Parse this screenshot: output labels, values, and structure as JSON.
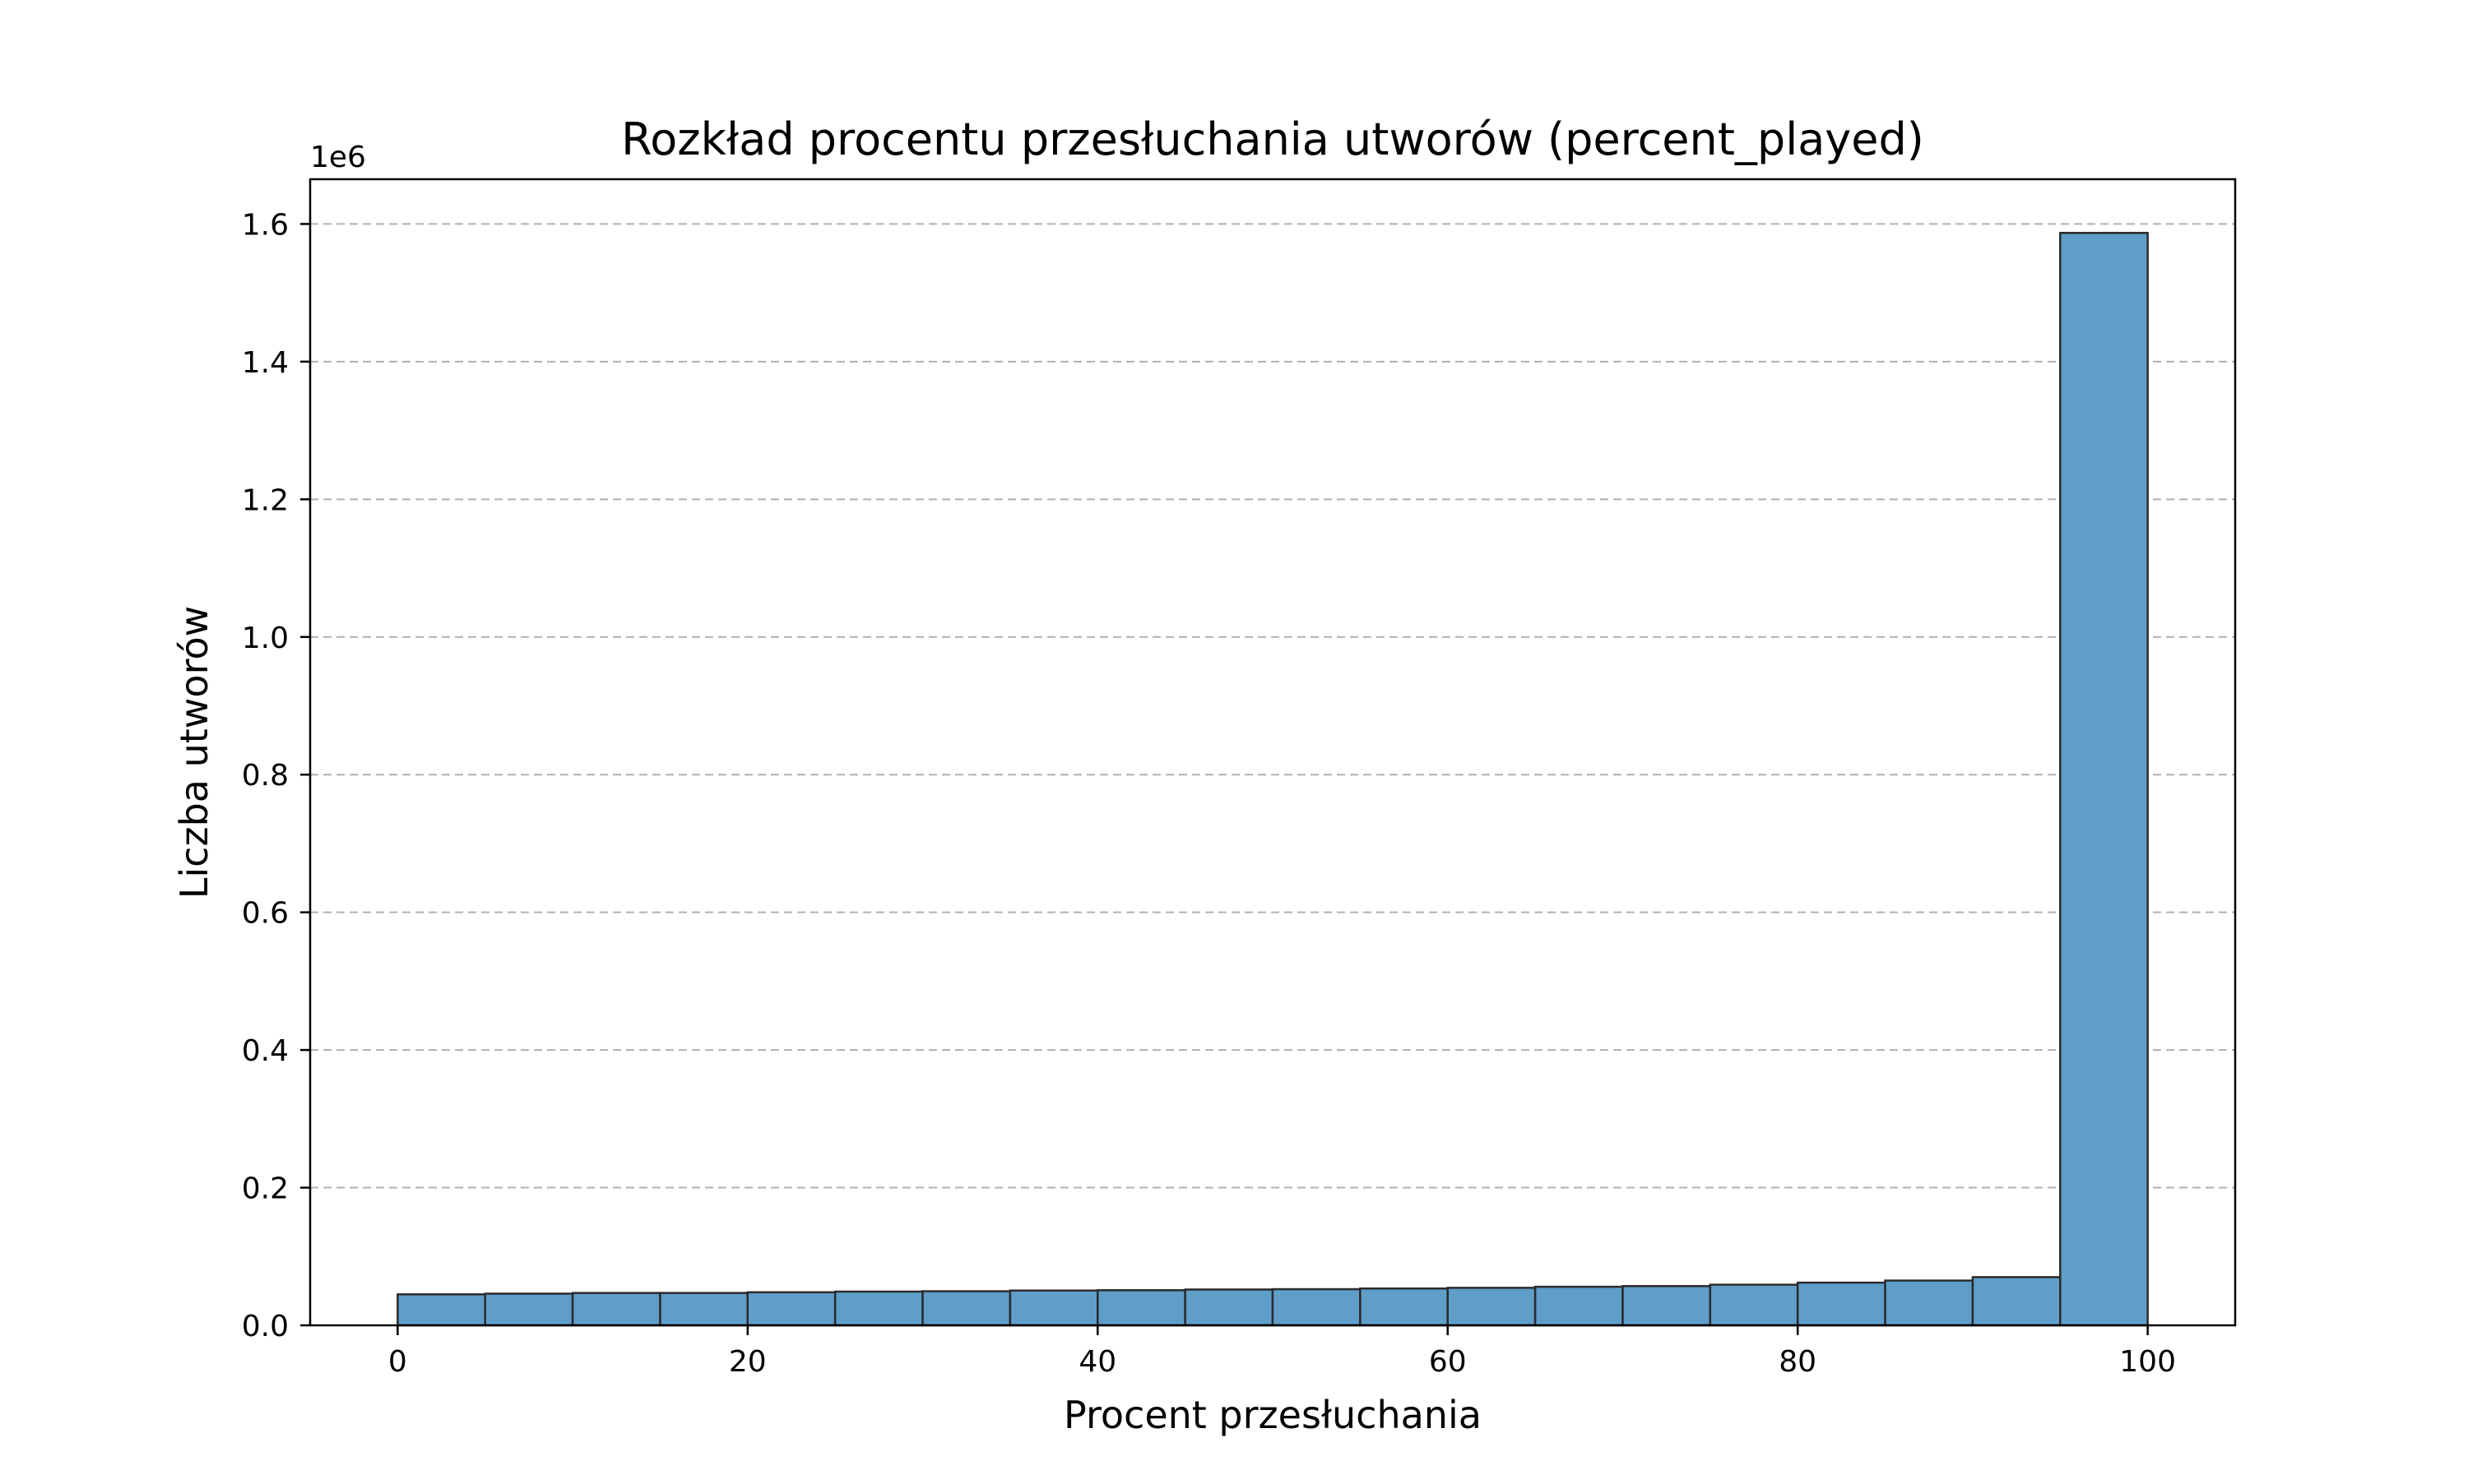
{
  "chart_data": {
    "type": "bar",
    "title": "Rozkład procentu przesłuchania utworów (percent_played)",
    "xlabel": "Procent przesłuchania",
    "ylabel": "Liczba utworów",
    "y_offset_label": "1e6",
    "xlim": [
      -5,
      105
    ],
    "ylim": [
      0,
      1.665
    ],
    "y_scale": 1000000,
    "xticks": [
      0,
      20,
      40,
      60,
      80,
      100
    ],
    "xtick_labels": [
      "0",
      "20",
      "40",
      "60",
      "80",
      "100"
    ],
    "yticks": [
      0,
      0.2,
      0.4,
      0.6,
      0.8,
      1.0,
      1.2,
      1.4,
      1.6
    ],
    "ytick_labels": [
      "0.0",
      "0.2",
      "0.4",
      "0.6",
      "0.8",
      "1.0",
      "1.2",
      "1.4",
      "1.6"
    ],
    "grid": "y-dashed",
    "bar_color": "#5f9ec9",
    "edge_color": "#2b2b2b",
    "grid_color": "#b0b0b0",
    "bins": [
      {
        "x0": 0,
        "x1": 5,
        "value": 45000
      },
      {
        "x0": 5,
        "x1": 10,
        "value": 46000
      },
      {
        "x0": 10,
        "x1": 15,
        "value": 47000
      },
      {
        "x0": 15,
        "x1": 20,
        "value": 47000
      },
      {
        "x0": 20,
        "x1": 25,
        "value": 48000
      },
      {
        "x0": 25,
        "x1": 30,
        "value": 49000
      },
      {
        "x0": 30,
        "x1": 35,
        "value": 49500
      },
      {
        "x0": 35,
        "x1": 40,
        "value": 50500
      },
      {
        "x0": 40,
        "x1": 45,
        "value": 51000
      },
      {
        "x0": 45,
        "x1": 50,
        "value": 52000
      },
      {
        "x0": 50,
        "x1": 55,
        "value": 52500
      },
      {
        "x0": 55,
        "x1": 60,
        "value": 53500
      },
      {
        "x0": 60,
        "x1": 65,
        "value": 54500
      },
      {
        "x0": 65,
        "x1": 70,
        "value": 56000
      },
      {
        "x0": 70,
        "x1": 75,
        "value": 57000
      },
      {
        "x0": 75,
        "x1": 80,
        "value": 59000
      },
      {
        "x0": 80,
        "x1": 85,
        "value": 62000
      },
      {
        "x0": 85,
        "x1": 90,
        "value": 65000
      },
      {
        "x0": 90,
        "x1": 95,
        "value": 70000
      },
      {
        "x0": 95,
        "x1": 100,
        "value": 1587000
      }
    ]
  }
}
